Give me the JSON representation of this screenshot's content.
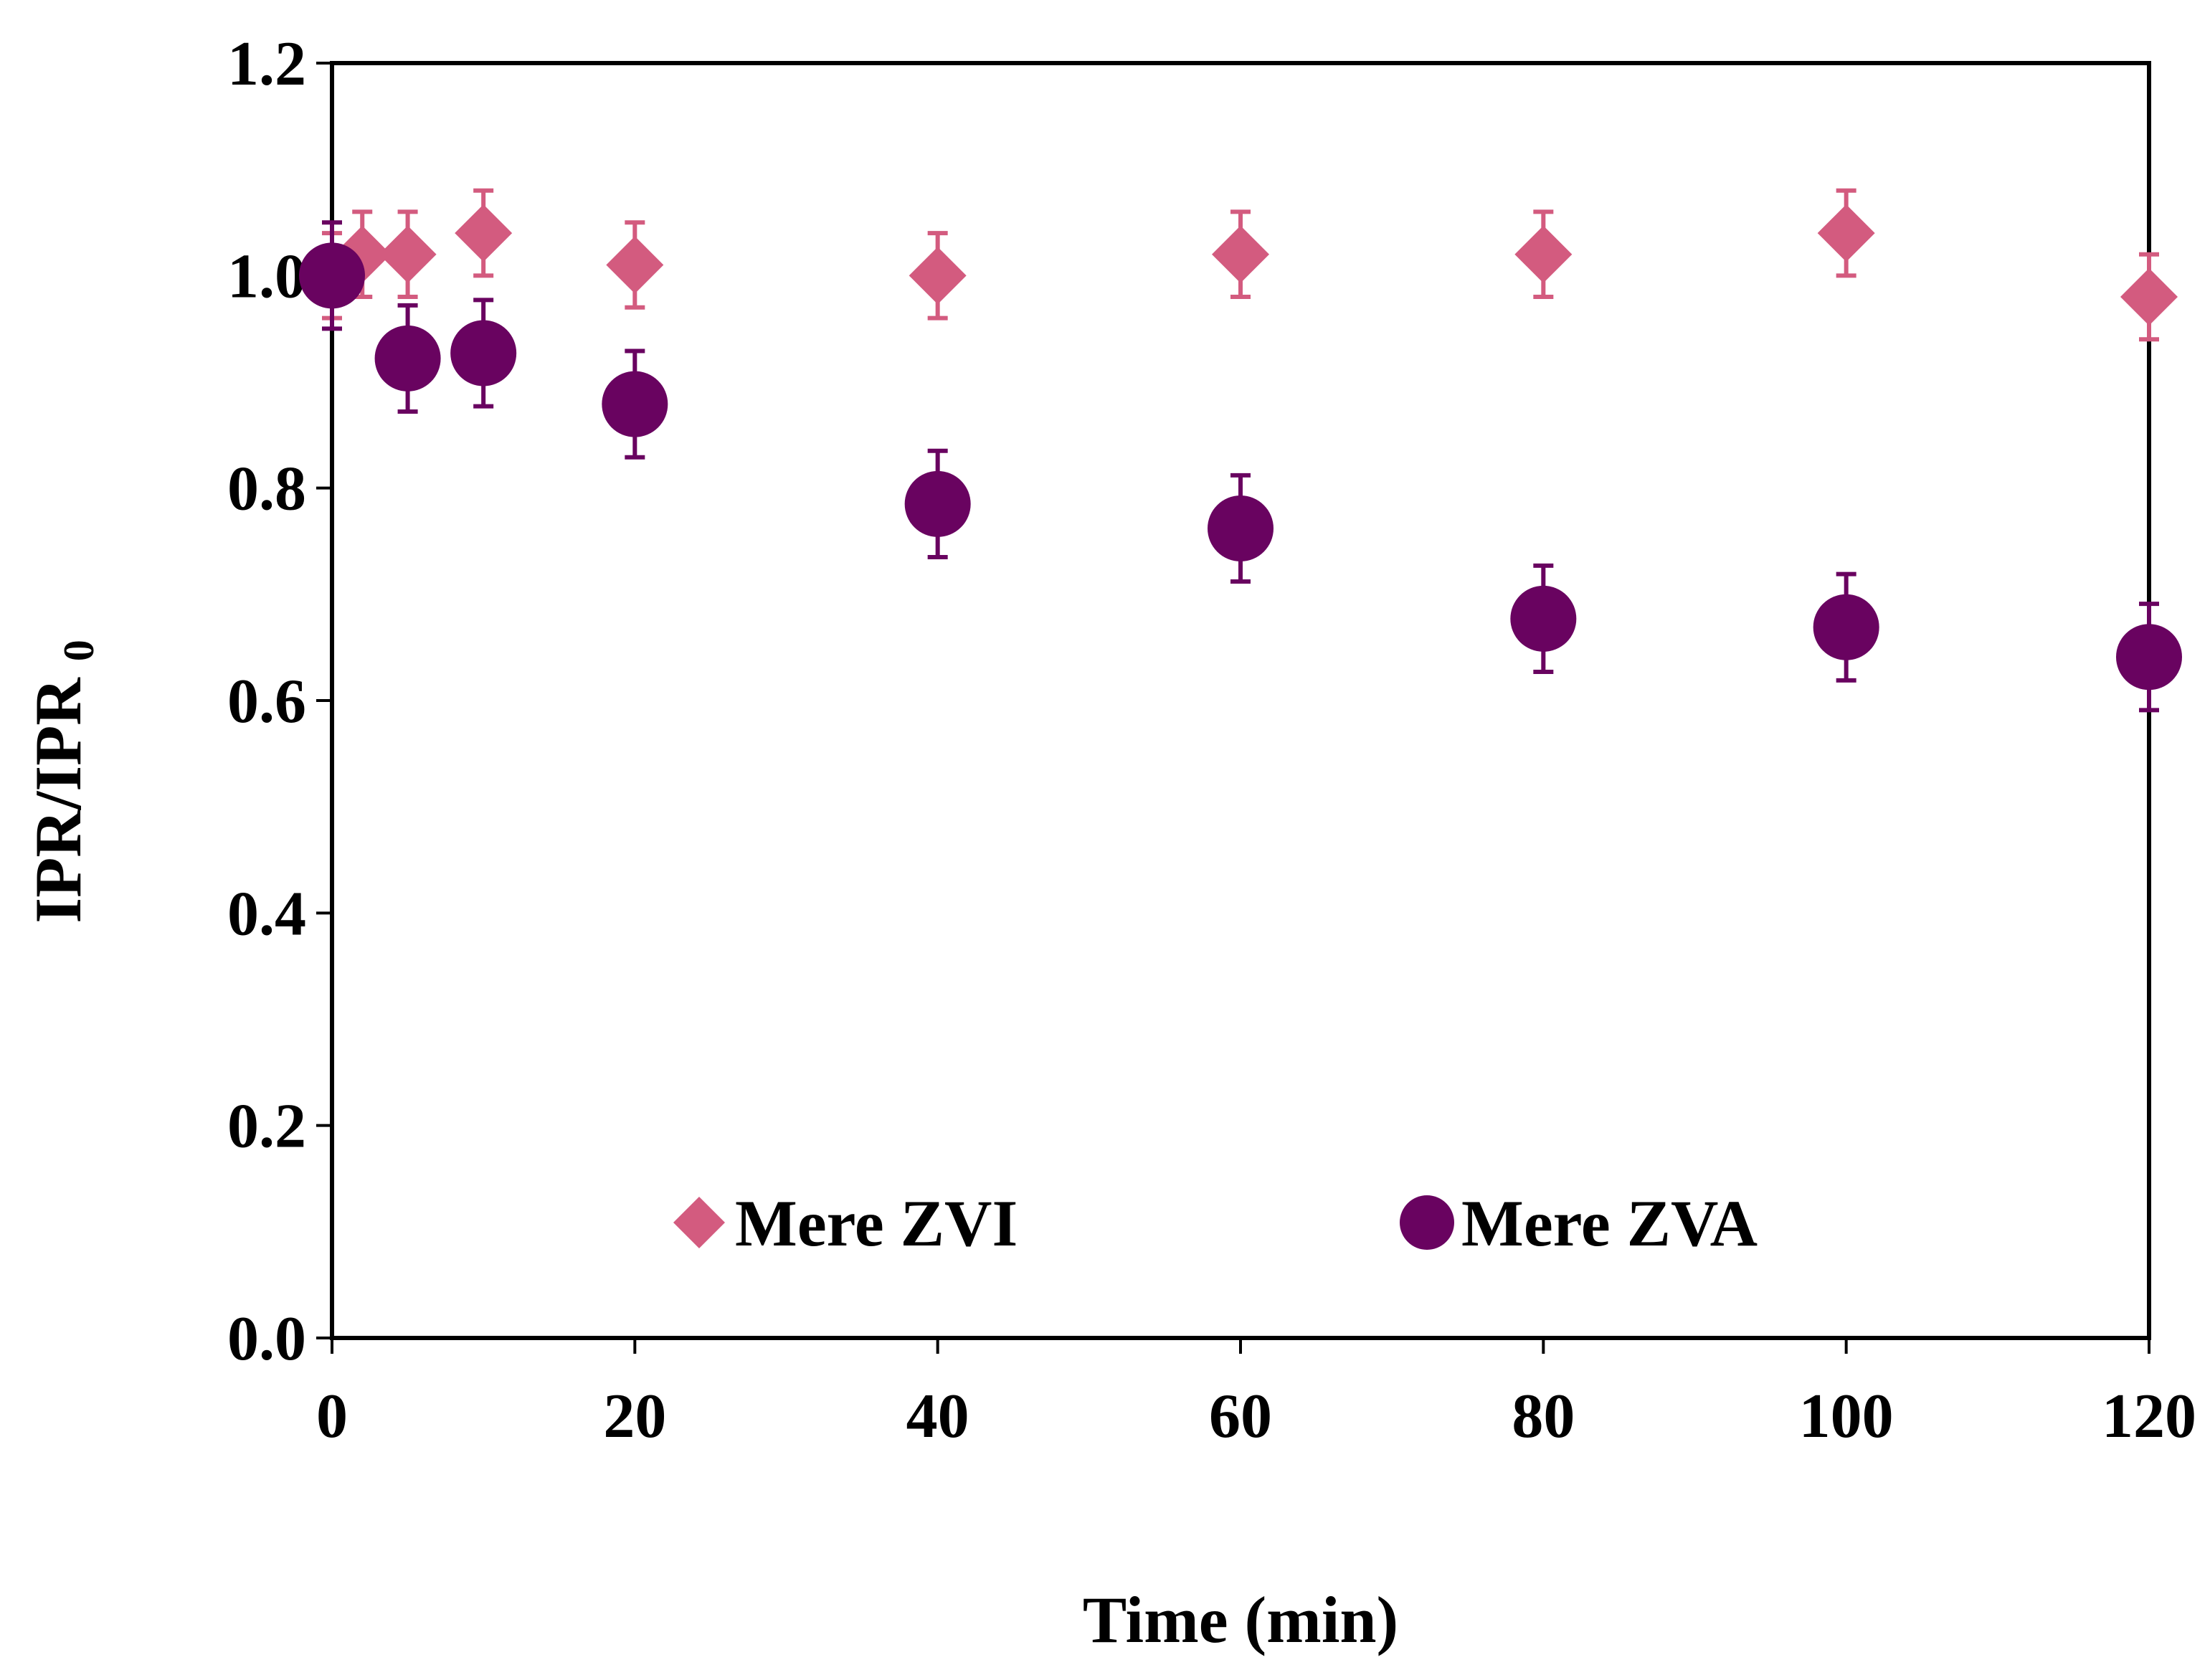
{
  "chart_data": {
    "type": "scatter",
    "title": "",
    "xlabel": "Time (min)",
    "ylabel": {
      "main": "IPR/IPR",
      "subscript": "0"
    },
    "xlim": [
      0,
      120
    ],
    "ylim": [
      0,
      1.2
    ],
    "x_ticks": [
      "0",
      "20",
      "40",
      "60",
      "80",
      "100",
      "120"
    ],
    "y_ticks": [
      "0.0",
      "0.2",
      "0.4",
      "0.6",
      "0.8",
      "1.0",
      "1.2"
    ],
    "grid": false,
    "legend_position": "bottom-center",
    "series": [
      {
        "name": "Mere ZVI",
        "marker": "diamond",
        "color": "#d35b7f",
        "x": [
          0,
          2,
          5,
          10,
          20,
          40,
          60,
          80,
          100,
          120
        ],
        "y": [
          1.0,
          1.02,
          1.02,
          1.04,
          1.01,
          1.0,
          1.02,
          1.02,
          1.04,
          0.98
        ],
        "error": [
          0.04,
          0.04,
          0.04,
          0.04,
          0.04,
          0.04,
          0.04,
          0.04,
          0.04,
          0.04
        ]
      },
      {
        "name": "Mere ZVA",
        "marker": "circle",
        "color": "#690360",
        "x": [
          0,
          5,
          10,
          20,
          40,
          60,
          80,
          100,
          120
        ],
        "y": [
          1.0,
          0.922,
          0.927,
          0.879,
          0.785,
          0.762,
          0.677,
          0.669,
          0.641
        ],
        "error": [
          0.05,
          0.05,
          0.05,
          0.05,
          0.05,
          0.05,
          0.05,
          0.05,
          0.05
        ]
      }
    ]
  }
}
